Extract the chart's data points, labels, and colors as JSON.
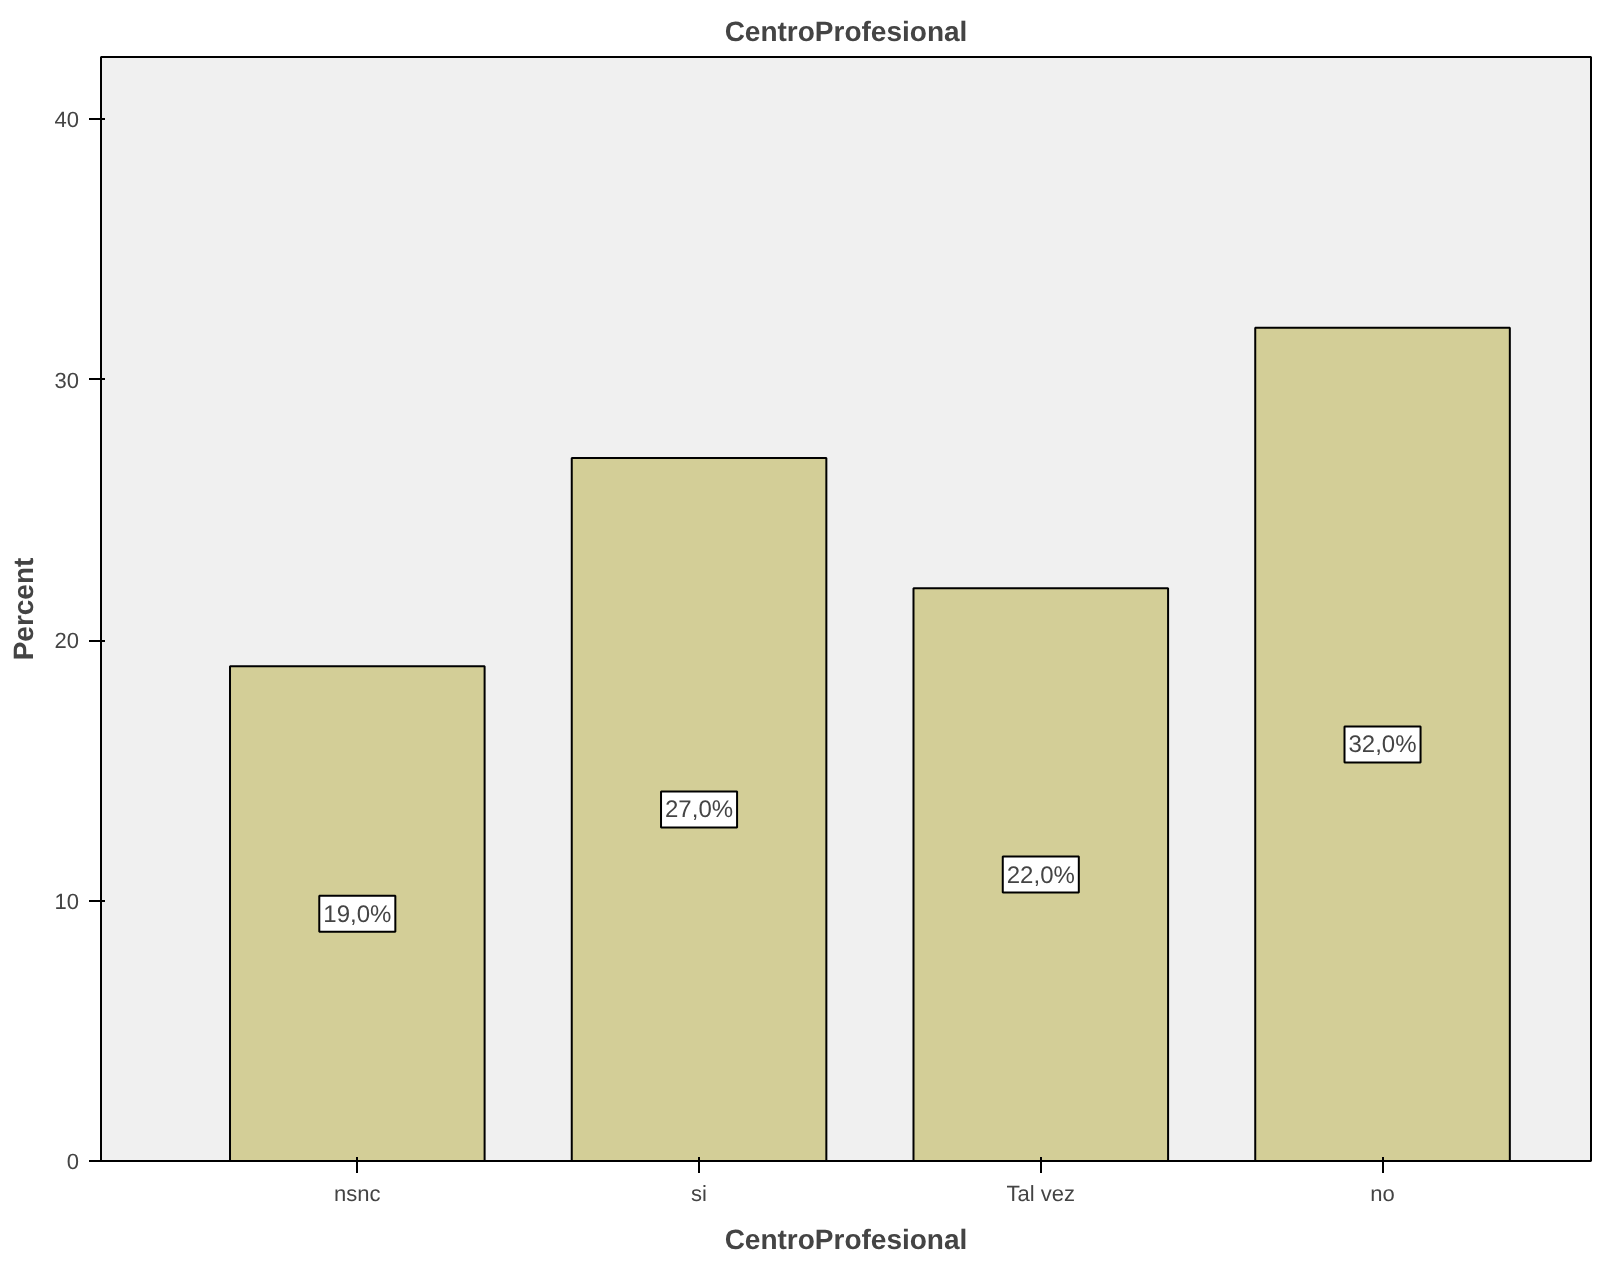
{
  "chart_data": {
    "type": "bar",
    "title": "CentroProfesional",
    "xlabel": "CentroProfesional",
    "ylabel": "Percent",
    "categories": [
      "nsnc",
      "si",
      "Tal vez",
      "no"
    ],
    "values": [
      19.0,
      27.0,
      22.0,
      32.0
    ],
    "value_labels": [
      "19,0%",
      "27,0%",
      "22,0%",
      "32,0%"
    ],
    "color": "#d3ce97",
    "ylim": [
      0,
      42.4
    ],
    "yticks": [
      0,
      10,
      20,
      30,
      40
    ],
    "grid": false
  }
}
